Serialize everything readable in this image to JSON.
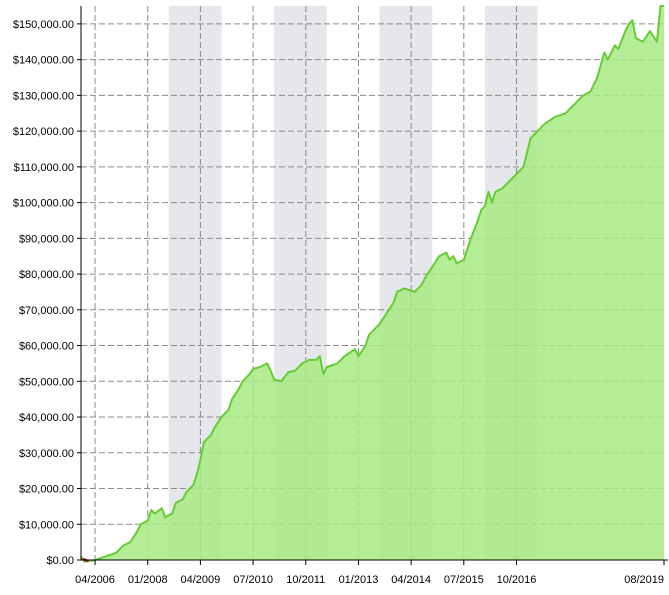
{
  "chart_data": {
    "type": "area",
    "title": "",
    "xlabel": "",
    "ylabel": "",
    "x_ticks": [
      "04/2006",
      "01/2008",
      "04/2009",
      "07/2010",
      "10/2011",
      "01/2013",
      "04/2014",
      "07/2015",
      "10/2016",
      "08/2019"
    ],
    "y_ticks": [
      "$0.00",
      "$10,000.00",
      "$20,000.00",
      "$30,000.00",
      "$40,000.00",
      "$50,000.00",
      "$60,000.00",
      "$70,000.00",
      "$80,000.00",
      "$90,000.00",
      "$100,000.00",
      "$110,000.00",
      "$120,000.00",
      "$130,000.00",
      "$140,000.00",
      "$150,000.00"
    ],
    "ylim": [
      0,
      155000
    ],
    "xlim": [
      "2005-12",
      "2019-10"
    ],
    "grid": true,
    "shaded_periods": [
      [
        "2008-01",
        "2009-04"
      ],
      [
        "2010-07",
        "2011-10"
      ],
      [
        "2013-01",
        "2014-04"
      ],
      [
        "2015-07",
        "2016-10"
      ]
    ],
    "series": [
      {
        "color": "#66cc33",
        "fill": "#a8ea84",
        "points": [
          [
            "2005-12",
            1000
          ],
          [
            "2006-01",
            -500
          ],
          [
            "2006-04",
            0
          ],
          [
            "2006-07",
            1000
          ],
          [
            "2006-10",
            2000
          ],
          [
            "2006-12",
            4000
          ],
          [
            "2007-02",
            5000
          ],
          [
            "2007-04",
            8000
          ],
          [
            "2007-05",
            10000
          ],
          [
            "2007-07",
            11000
          ],
          [
            "2007-08",
            14000
          ],
          [
            "2007-09",
            13000
          ],
          [
            "2007-11",
            14500
          ],
          [
            "2007-12",
            12000
          ],
          [
            "2008-02",
            13000
          ],
          [
            "2008-03",
            16000
          ],
          [
            "2008-05",
            17000
          ],
          [
            "2008-06",
            19000
          ],
          [
            "2008-08",
            21000
          ],
          [
            "2008-09",
            24000
          ],
          [
            "2008-10",
            28000
          ],
          [
            "2008-11",
            33000
          ],
          [
            "2009-01",
            35000
          ],
          [
            "2009-02",
            37000
          ],
          [
            "2009-04",
            40000
          ],
          [
            "2009-06",
            42000
          ],
          [
            "2009-07",
            45000
          ],
          [
            "2009-09",
            48000
          ],
          [
            "2009-10",
            50000
          ],
          [
            "2009-12",
            52000
          ],
          [
            "2010-01",
            53500
          ],
          [
            "2010-03",
            54000
          ],
          [
            "2010-05",
            55000
          ],
          [
            "2010-06",
            53000
          ],
          [
            "2010-07",
            50500
          ],
          [
            "2010-09",
            50000
          ],
          [
            "2010-11",
            52500
          ],
          [
            "2011-01",
            53000
          ],
          [
            "2011-03",
            55000
          ],
          [
            "2011-05",
            56000
          ],
          [
            "2011-07",
            56000
          ],
          [
            "2011-08",
            57000
          ],
          [
            "2011-09",
            52000
          ],
          [
            "2011-10",
            54000
          ],
          [
            "2012-01",
            55000
          ],
          [
            "2012-03",
            57000
          ],
          [
            "2012-06",
            59000
          ],
          [
            "2012-07",
            57000
          ],
          [
            "2012-09",
            60000
          ],
          [
            "2012-10",
            63000
          ],
          [
            "2013-01",
            66000
          ],
          [
            "2013-03",
            69000
          ],
          [
            "2013-05",
            72000
          ],
          [
            "2013-06",
            75000
          ],
          [
            "2013-08",
            76000
          ],
          [
            "2013-11",
            75000
          ],
          [
            "2014-01",
            77000
          ],
          [
            "2014-02",
            79000
          ],
          [
            "2014-04",
            82000
          ],
          [
            "2014-06",
            85000
          ],
          [
            "2014-08",
            86000
          ],
          [
            "2014-09",
            84000
          ],
          [
            "2014-10",
            85000
          ],
          [
            "2014-11",
            83000
          ],
          [
            "2015-01",
            84000
          ],
          [
            "2015-03",
            90000
          ],
          [
            "2015-05",
            95000
          ],
          [
            "2015-06",
            98000
          ],
          [
            "2015-07",
            99000
          ],
          [
            "2015-08",
            103000
          ],
          [
            "2015-09",
            100000
          ],
          [
            "2015-10",
            103000
          ],
          [
            "2015-12",
            104000
          ],
          [
            "2016-02",
            106000
          ],
          [
            "2016-04",
            108000
          ],
          [
            "2016-06",
            110000
          ],
          [
            "2016-08",
            118000
          ],
          [
            "2016-10",
            120000
          ],
          [
            "2016-12",
            122000
          ],
          [
            "2017-03",
            124000
          ],
          [
            "2017-06",
            125000
          ],
          [
            "2017-08",
            127000
          ],
          [
            "2017-11",
            130000
          ],
          [
            "2018-01",
            131000
          ],
          [
            "2018-03",
            135000
          ],
          [
            "2018-05",
            142000
          ],
          [
            "2018-06",
            140000
          ],
          [
            "2018-08",
            144000
          ],
          [
            "2018-09",
            143000
          ],
          [
            "2018-11",
            148000
          ],
          [
            "2018-12",
            150000
          ],
          [
            "2019-01",
            151000
          ],
          [
            "2019-02",
            146000
          ],
          [
            "2019-04",
            145000
          ],
          [
            "2019-06",
            148000
          ],
          [
            "2019-08",
            145000
          ],
          [
            "2019-09",
            155000
          ],
          [
            "2019-10",
            155000
          ]
        ]
      }
    ],
    "start_marker": {
      "x": "2006-01",
      "y": 0,
      "color": "#cc0000"
    }
  }
}
